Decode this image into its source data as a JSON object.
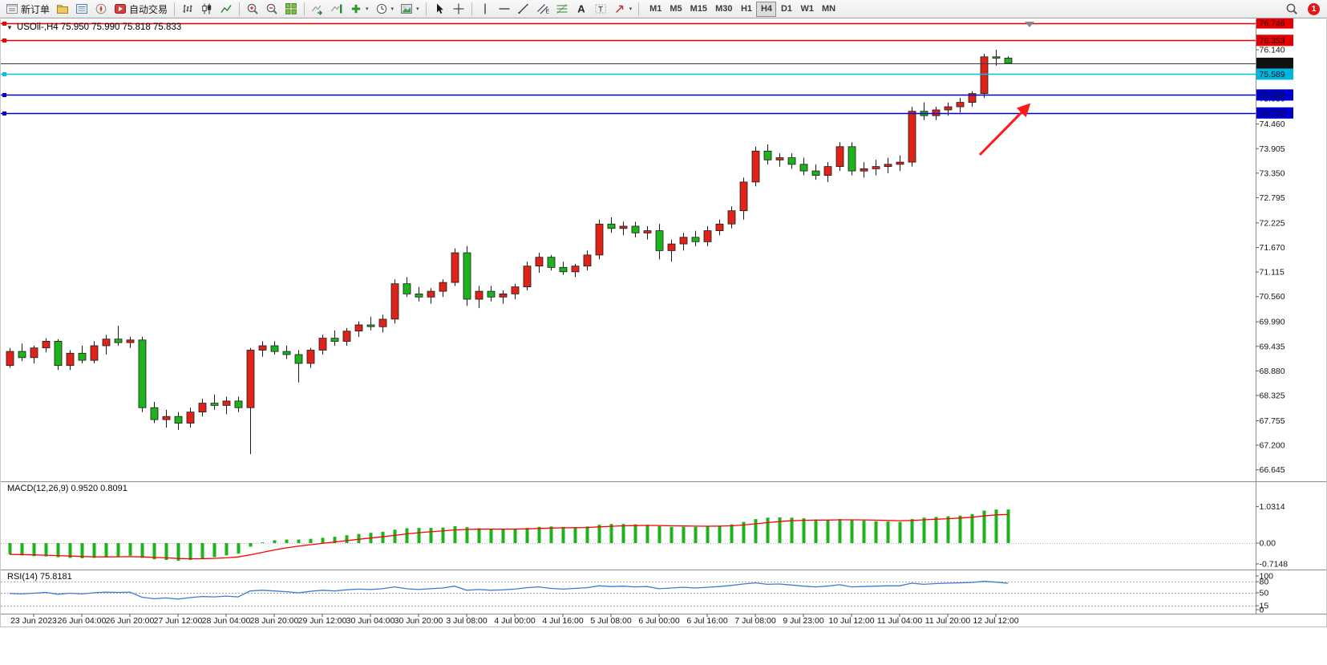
{
  "toolbar": {
    "items": [
      {
        "name": "new-order",
        "icon": "form",
        "label": "新订单"
      },
      {
        "name": "charts-profile",
        "icon": "profiles"
      },
      {
        "name": "market-watch",
        "icon": "marketwatch"
      },
      {
        "name": "navigator",
        "icon": "navigator"
      },
      {
        "name": "auto-trading",
        "icon": "autotrade",
        "label": "自动交易"
      },
      {
        "sep": true
      },
      {
        "name": "bar-chart-mode",
        "icon": "barchart"
      },
      {
        "name": "candlestick-mode",
        "icon": "candles"
      },
      {
        "name": "line-chart-mode",
        "icon": "linechart"
      },
      {
        "sep": true
      },
      {
        "name": "zoom-in",
        "icon": "zoomin"
      },
      {
        "name": "zoom-out",
        "icon": "zoomout"
      },
      {
        "name": "tile-windows",
        "icon": "grid"
      },
      {
        "sep": true
      },
      {
        "name": "auto-scroll",
        "icon": "autoscroll"
      },
      {
        "name": "chart-shift",
        "icon": "chartshift"
      },
      {
        "name": "indicators",
        "icon": "indicators",
        "caret": true
      },
      {
        "name": "periods",
        "icon": "periods",
        "caret": true
      },
      {
        "name": "templates",
        "icon": "templates",
        "caret": true
      },
      {
        "sep": true
      },
      {
        "name": "cursor",
        "icon": "cursor"
      },
      {
        "name": "crosshair",
        "icon": "crosshair"
      },
      {
        "sep": true
      },
      {
        "name": "vertical-line",
        "icon": "vline"
      },
      {
        "name": "horizontal-line",
        "icon": "hline"
      },
      {
        "name": "trend-line",
        "icon": "trendline"
      },
      {
        "name": "equidistant-channel",
        "icon": "channel"
      },
      {
        "name": "fibonacci-retracement",
        "icon": "fibo"
      },
      {
        "name": "text",
        "icon": "textA"
      },
      {
        "name": "text-label",
        "icon": "label"
      },
      {
        "name": "arrows",
        "icon": "arrows",
        "caret": true
      },
      {
        "sep": true
      }
    ],
    "timeframes": [
      "M1",
      "M5",
      "M15",
      "M30",
      "H1",
      "H4",
      "D1",
      "W1",
      "MN"
    ],
    "active_timeframe": "H4",
    "notification_count": "1"
  },
  "chart": {
    "title": "USOil-,H4 75.950 75.990 75.818 75.833",
    "symbol_marker": "▼",
    "ohlc": {
      "open": "75.950",
      "high": "75.990",
      "low": "75.818",
      "close": "75.833"
    }
  },
  "indicators": {
    "macd_label": "MACD(12,26,9) 0.9520 0.8091",
    "rsi_label": "RSI(14) 75.8181"
  },
  "chart_data": {
    "type": "candlestick",
    "symbol": "USOil-",
    "timeframe": "H4",
    "price_axis_ticks": [
      "76.140",
      "75.585",
      "75.030",
      "74.460",
      "73.905",
      "73.350",
      "72.795",
      "72.225",
      "71.670",
      "71.115",
      "70.560",
      "69.990",
      "69.435",
      "68.880",
      "68.325",
      "67.755",
      "67.200",
      "66.645"
    ],
    "time_axis_ticks": [
      "23 Jun 2023",
      "26 Jun 04:00",
      "26 Jun 20:00",
      "27 Jun 12:00",
      "28 Jun 04:00",
      "28 Jun 20:00",
      "29 Jun 12:00",
      "30 Jun 04:00",
      "30 Jun 20:00",
      "3 Jul 08:00",
      "4 Jul 00:00",
      "4 Jul 16:00",
      "5 Jul 08:00",
      "6 Jul 00:00",
      "6 Jul 16:00",
      "7 Jul 08:00",
      "9 Jul 23:00",
      "10 Jul 12:00",
      "11 Jul 04:00",
      "11 Jul 20:00",
      "12 Jul 12:00"
    ],
    "candles_ohlc": [
      [
        69.0,
        69.4,
        68.95,
        69.32
      ],
      [
        69.32,
        69.5,
        69.1,
        69.18
      ],
      [
        69.18,
        69.45,
        69.05,
        69.4
      ],
      [
        69.4,
        69.62,
        69.3,
        69.55
      ],
      [
        69.55,
        69.6,
        68.9,
        69.0
      ],
      [
        69.0,
        69.35,
        68.9,
        69.28
      ],
      [
        69.28,
        69.45,
        69.05,
        69.12
      ],
      [
        69.12,
        69.55,
        69.05,
        69.45
      ],
      [
        69.45,
        69.7,
        69.25,
        69.6
      ],
      [
        69.6,
        69.9,
        69.45,
        69.52
      ],
      [
        69.52,
        69.65,
        69.4,
        69.58
      ],
      [
        69.58,
        69.65,
        67.95,
        68.05
      ],
      [
        68.05,
        68.18,
        67.7,
        67.78
      ],
      [
        67.78,
        68.0,
        67.6,
        67.85
      ],
      [
        67.85,
        67.95,
        67.55,
        67.7
      ],
      [
        67.7,
        68.05,
        67.6,
        67.95
      ],
      [
        67.95,
        68.25,
        67.85,
        68.15
      ],
      [
        68.15,
        68.35,
        68.0,
        68.1
      ],
      [
        68.1,
        68.3,
        67.9,
        68.2
      ],
      [
        68.2,
        68.3,
        67.95,
        68.05
      ],
      [
        68.05,
        69.4,
        67.0,
        69.35
      ],
      [
        69.35,
        69.55,
        69.2,
        69.45
      ],
      [
        69.45,
        69.55,
        69.25,
        69.32
      ],
      [
        69.32,
        69.45,
        69.15,
        69.25
      ],
      [
        69.25,
        69.35,
        68.62,
        69.05
      ],
      [
        69.05,
        69.4,
        68.95,
        69.35
      ],
      [
        69.35,
        69.7,
        69.25,
        69.62
      ],
      [
        69.62,
        69.8,
        69.45,
        69.55
      ],
      [
        69.55,
        69.85,
        69.45,
        69.78
      ],
      [
        69.78,
        70.0,
        69.65,
        69.92
      ],
      [
        69.92,
        70.1,
        69.8,
        69.88
      ],
      [
        69.88,
        70.15,
        69.75,
        70.05
      ],
      [
        70.05,
        70.95,
        69.95,
        70.85
      ],
      [
        70.85,
        71.0,
        70.55,
        70.62
      ],
      [
        70.62,
        70.78,
        70.45,
        70.55
      ],
      [
        70.55,
        70.75,
        70.4,
        70.68
      ],
      [
        70.68,
        70.95,
        70.55,
        70.88
      ],
      [
        70.88,
        71.65,
        70.8,
        71.55
      ],
      [
        71.55,
        71.7,
        70.35,
        70.5
      ],
      [
        70.5,
        70.8,
        70.3,
        70.68
      ],
      [
        70.68,
        70.8,
        70.45,
        70.55
      ],
      [
        70.55,
        70.7,
        70.4,
        70.62
      ],
      [
        70.62,
        70.85,
        70.5,
        70.78
      ],
      [
        70.78,
        71.35,
        70.7,
        71.25
      ],
      [
        71.25,
        71.55,
        71.1,
        71.45
      ],
      [
        71.45,
        71.5,
        71.15,
        71.22
      ],
      [
        71.22,
        71.35,
        71.05,
        71.12
      ],
      [
        71.12,
        71.3,
        71.0,
        71.25
      ],
      [
        71.25,
        71.6,
        71.15,
        71.5
      ],
      [
        71.5,
        72.3,
        71.4,
        72.2
      ],
      [
        72.2,
        72.35,
        72.0,
        72.1
      ],
      [
        72.1,
        72.25,
        71.95,
        72.15
      ],
      [
        72.15,
        72.25,
        71.9,
        72.0
      ],
      [
        72.0,
        72.15,
        71.85,
        72.05
      ],
      [
        72.05,
        72.2,
        71.4,
        71.6
      ],
      [
        71.6,
        71.85,
        71.35,
        71.75
      ],
      [
        71.75,
        72.0,
        71.6,
        71.9
      ],
      [
        71.9,
        72.05,
        71.7,
        71.8
      ],
      [
        71.8,
        72.15,
        71.7,
        72.05
      ],
      [
        72.05,
        72.3,
        71.95,
        72.2
      ],
      [
        72.2,
        72.6,
        72.1,
        72.5
      ],
      [
        72.5,
        73.25,
        72.3,
        73.15
      ],
      [
        73.15,
        73.95,
        73.05,
        73.85
      ],
      [
        73.85,
        74.0,
        73.55,
        73.65
      ],
      [
        73.65,
        73.8,
        73.5,
        73.7
      ],
      [
        73.7,
        73.8,
        73.45,
        73.55
      ],
      [
        73.55,
        73.7,
        73.3,
        73.4
      ],
      [
        73.4,
        73.55,
        73.2,
        73.3
      ],
      [
        73.3,
        73.6,
        73.15,
        73.5
      ],
      [
        73.5,
        74.05,
        73.4,
        73.95
      ],
      [
        73.95,
        74.05,
        73.3,
        73.4
      ],
      [
        73.4,
        73.6,
        73.25,
        73.45
      ],
      [
        73.45,
        73.65,
        73.3,
        73.5
      ],
      [
        73.5,
        73.7,
        73.35,
        73.55
      ],
      [
        73.55,
        73.75,
        73.4,
        73.6
      ],
      [
        73.6,
        74.85,
        73.5,
        74.75
      ],
      [
        74.75,
        74.95,
        74.55,
        74.65
      ],
      [
        74.65,
        74.85,
        74.55,
        74.78
      ],
      [
        74.78,
        74.95,
        74.65,
        74.85
      ],
      [
        74.85,
        75.05,
        74.72,
        74.95
      ],
      [
        74.95,
        75.2,
        74.85,
        75.15
      ],
      [
        75.15,
        76.05,
        75.05,
        75.98
      ],
      [
        75.98,
        76.14,
        75.78,
        75.95
      ],
      [
        75.95,
        75.99,
        75.818,
        75.833
      ]
    ],
    "horizontal_lines": [
      {
        "price": 76.746,
        "color": "#e80000",
        "badge_bg": "#e80000",
        "label": "76.746",
        "kind": "object"
      },
      {
        "price": 76.353,
        "color": "#e80000",
        "badge_bg": "#e80000",
        "label": "76.353",
        "kind": "object"
      },
      {
        "price": 75.833,
        "color": "#3c3c3c",
        "badge_bg": "#101010",
        "label": "75.833",
        "kind": "current-price"
      },
      {
        "price": 75.589,
        "color": "#00c0e8",
        "badge_bg": "#00b4e0",
        "label": "75.589",
        "kind": "object"
      },
      {
        "price": 75.118,
        "color": "#0000cc",
        "badge_bg": "#0000cc",
        "label": "75.118",
        "kind": "object"
      },
      {
        "price": 74.712,
        "color": "#0000cc",
        "badge_bg": "#0000cc",
        "label": "74.712",
        "kind": "object"
      }
    ],
    "annotation_arrow": {
      "from": [
        1222,
        193
      ],
      "to": [
        1283,
        131
      ],
      "color": "#ff1a1a"
    },
    "macd": {
      "name": "MACD(12,26,9)",
      "main_value": "0.9520",
      "signal_value": "0.8091",
      "axis_ticks": [
        "1.0314",
        "0.00",
        "-0.7148"
      ],
      "histogram": [
        -0.32,
        -0.35,
        -0.37,
        -0.38,
        -0.4,
        -0.42,
        -0.43,
        -0.42,
        -0.4,
        -0.38,
        -0.36,
        -0.42,
        -0.46,
        -0.48,
        -0.5,
        -0.48,
        -0.44,
        -0.4,
        -0.35,
        -0.3,
        -0.1,
        0.02,
        0.08,
        0.1,
        0.1,
        0.12,
        0.15,
        0.18,
        0.22,
        0.26,
        0.29,
        0.32,
        0.38,
        0.42,
        0.43,
        0.43,
        0.44,
        0.48,
        0.45,
        0.42,
        0.4,
        0.39,
        0.4,
        0.43,
        0.46,
        0.47,
        0.46,
        0.45,
        0.47,
        0.52,
        0.54,
        0.54,
        0.53,
        0.52,
        0.48,
        0.46,
        0.46,
        0.46,
        0.47,
        0.49,
        0.53,
        0.6,
        0.68,
        0.72,
        0.73,
        0.72,
        0.7,
        0.67,
        0.66,
        0.68,
        0.67,
        0.64,
        0.62,
        0.61,
        0.6,
        0.68,
        0.72,
        0.74,
        0.76,
        0.78,
        0.82,
        0.92,
        0.95,
        0.952
      ],
      "signal": [
        -0.32,
        -0.326,
        -0.335,
        -0.344,
        -0.355,
        -0.368,
        -0.38,
        -0.388,
        -0.391,
        -0.389,
        -0.383,
        -0.39,
        -0.404,
        -0.419,
        -0.436,
        -0.444,
        -0.444,
        -0.435,
        -0.418,
        -0.394,
        -0.335,
        -0.264,
        -0.195,
        -0.136,
        -0.089,
        -0.047,
        -0.008,
        0.03,
        0.068,
        0.106,
        0.143,
        0.178,
        0.219,
        0.259,
        0.293,
        0.321,
        0.344,
        0.372,
        0.387,
        0.394,
        0.395,
        0.394,
        0.395,
        0.402,
        0.414,
        0.425,
        0.432,
        0.436,
        0.442,
        0.458,
        0.474,
        0.488,
        0.496,
        0.501,
        0.497,
        0.489,
        0.484,
        0.479,
        0.477,
        0.479,
        0.489,
        0.512,
        0.545,
        0.58,
        0.61,
        0.632,
        0.646,
        0.651,
        0.652,
        0.658,
        0.66,
        0.656,
        0.649,
        0.641,
        0.633,
        0.642,
        0.658,
        0.674,
        0.691,
        0.709,
        0.731,
        0.769,
        0.8,
        0.809
      ]
    },
    "rsi": {
      "name": "RSI(14)",
      "value": "75.8181",
      "axis_ticks": [
        "100",
        "80",
        "50",
        "15",
        "0"
      ],
      "levels": [
        80,
        50,
        15
      ],
      "values": [
        48,
        47,
        49,
        51,
        46,
        49,
        47,
        50,
        52,
        51,
        52,
        38,
        34,
        36,
        33,
        37,
        40,
        39,
        41,
        39,
        55,
        57,
        55,
        53,
        50,
        54,
        57,
        55,
        58,
        60,
        59,
        61,
        66,
        61,
        59,
        61,
        63,
        68,
        57,
        59,
        57,
        58,
        60,
        64,
        66,
        62,
        60,
        62,
        64,
        69,
        67,
        68,
        66,
        67,
        61,
        63,
        65,
        63,
        65,
        67,
        70,
        74,
        77,
        73,
        74,
        71,
        68,
        66,
        68,
        72,
        66,
        67,
        68,
        69,
        69,
        76,
        73,
        75,
        76,
        77,
        78,
        81,
        79,
        75.8
      ]
    },
    "colors": {
      "bull": "#e02318",
      "bear": "#1db31d",
      "wick": "#1a1a1a",
      "macd_histogram": "#1db31d",
      "macd_signal": "#ff0000",
      "rsi_line": "#3c7bd9",
      "background": "#ffffff"
    }
  }
}
